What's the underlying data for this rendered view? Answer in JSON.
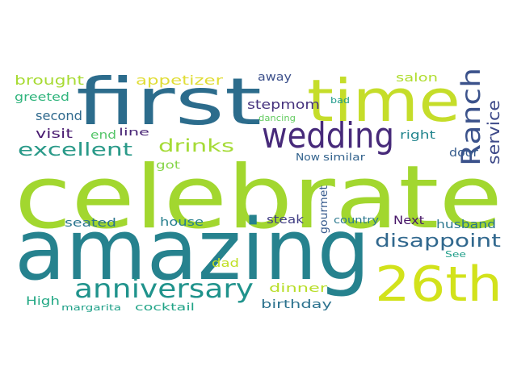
{
  "words": [
    {
      "text": "celebrate",
      "color": "#a2d72f"
    },
    {
      "text": "amazing",
      "color": "#26828e"
    },
    {
      "text": "first",
      "color": "#2c6c8c"
    },
    {
      "text": "time",
      "color": "#c5dd2a"
    },
    {
      "text": "26th",
      "color": "#d2e21b"
    },
    {
      "text": "wedding",
      "color": "#472a7a"
    },
    {
      "text": "anniversary",
      "color": "#20938c"
    },
    {
      "text": "Ranch",
      "color": "#3b528b"
    },
    {
      "text": "service",
      "color": "#3e4a89"
    },
    {
      "text": "disappoint",
      "color": "#31688e"
    },
    {
      "text": "excellent",
      "color": "#2a9a89"
    },
    {
      "text": "drinks",
      "color": "#a5db36"
    },
    {
      "text": "appetizer",
      "color": "#e1dd37"
    },
    {
      "text": "brought",
      "color": "#a8db34"
    },
    {
      "text": "stepmom",
      "color": "#46337e"
    },
    {
      "text": "second",
      "color": "#306a8e"
    },
    {
      "text": "visit",
      "color": "#4a1c71"
    },
    {
      "text": "greeted",
      "color": "#2fb47c"
    },
    {
      "text": "away",
      "color": "#3c508b"
    },
    {
      "text": "salon",
      "color": "#b0dd2f"
    },
    {
      "text": "bad",
      "color": "#1e9b8a"
    },
    {
      "text": "dancing",
      "color": "#62cb5f"
    },
    {
      "text": "end",
      "color": "#54c568"
    },
    {
      "text": "line",
      "color": "#482576"
    },
    {
      "text": "right",
      "color": "#24868e"
    },
    {
      "text": "Now",
      "color": "#33638d"
    },
    {
      "text": "similar",
      "color": "#33638d"
    },
    {
      "text": "door",
      "color": "#365c8d"
    },
    {
      "text": "got",
      "color": "#86d549"
    },
    {
      "text": "seated",
      "color": "#2b758e"
    },
    {
      "text": "house",
      "color": "#277f8e"
    },
    {
      "text": "steak",
      "color": "#423f85"
    },
    {
      "text": "gourmet",
      "color": "#375b8d"
    },
    {
      "text": "country",
      "color": "#2a788e"
    },
    {
      "text": "Next",
      "color": "#481769"
    },
    {
      "text": "husband",
      "color": "#2a768e"
    },
    {
      "text": "See",
      "color": "#1f9e89"
    },
    {
      "text": "dad",
      "color": "#c0df25"
    },
    {
      "text": "dinner",
      "color": "#b8de29"
    },
    {
      "text": "birthday",
      "color": "#2c728e"
    },
    {
      "text": "High",
      "color": "#22a884"
    },
    {
      "text": "margarita",
      "color": "#1fa088"
    },
    {
      "text": "cocktail",
      "color": "#20a386"
    }
  ]
}
